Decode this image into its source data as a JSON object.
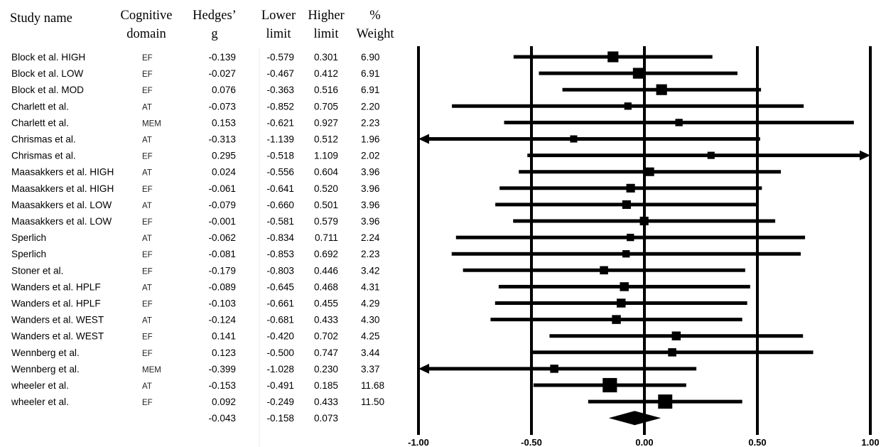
{
  "table": {
    "headers": {
      "study": [
        "Study name"
      ],
      "domain": [
        "Cognitive",
        "domain"
      ],
      "g": [
        "Hedges’",
        "g"
      ],
      "lower": [
        "Lower",
        "limit"
      ],
      "upper": [
        "Higher",
        "limit"
      ],
      "weight": [
        "%",
        "Weight"
      ]
    }
  },
  "chart_data": {
    "type": "forest",
    "xlim": [
      -1.0,
      1.0
    ],
    "x_ticks": [
      "-1.00",
      "-0.50",
      "0.00",
      "0.50",
      "1.00"
    ],
    "rows": [
      {
        "study": "Block et al. HIGH",
        "domain": "EF",
        "g": "-0.139",
        "lower": "-0.579",
        "upper": "0.301",
        "weight": "6.90"
      },
      {
        "study": "Block et al. LOW",
        "domain": "EF",
        "g": "-0.027",
        "lower": "-0.467",
        "upper": "0.412",
        "weight": "6.91"
      },
      {
        "study": "Block et al. MOD",
        "domain": "EF",
        "g": "0.076",
        "lower": "-0.363",
        "upper": "0.516",
        "weight": "6.91"
      },
      {
        "study": "Charlett et al.",
        "domain": "AT",
        "g": "-0.073",
        "lower": "-0.852",
        "upper": "0.705",
        "weight": "2.20"
      },
      {
        "study": "Charlett et al.",
        "domain": "MEM",
        "g": "0.153",
        "lower": "-0.621",
        "upper": "0.927",
        "weight": "2.23"
      },
      {
        "study": "Chrismas et al.",
        "domain": "AT",
        "g": "-0.313",
        "lower": "-1.139",
        "upper": "0.512",
        "weight": "1.96"
      },
      {
        "study": "Chrismas et al.",
        "domain": "EF",
        "g": "0.295",
        "lower": "-0.518",
        "upper": "1.109",
        "weight": "2.02"
      },
      {
        "study": "Maasakkers et al. HIGH",
        "domain": "AT",
        "g": "0.024",
        "lower": "-0.556",
        "upper": "0.604",
        "weight": "3.96"
      },
      {
        "study": "Maasakkers et al. HIGH",
        "domain": "EF",
        "g": "-0.061",
        "lower": "-0.641",
        "upper": "0.520",
        "weight": "3.96"
      },
      {
        "study": "Maasakkers et al. LOW",
        "domain": "AT",
        "g": "-0.079",
        "lower": "-0.660",
        "upper": "0.501",
        "weight": "3.96"
      },
      {
        "study": "Maasakkers et al. LOW",
        "domain": "EF",
        "g": "-0.001",
        "lower": "-0.581",
        "upper": "0.579",
        "weight": "3.96"
      },
      {
        "study": "Sperlich",
        "domain": "AT",
        "g": "-0.062",
        "lower": "-0.834",
        "upper": "0.711",
        "weight": "2.24"
      },
      {
        "study": "Sperlich",
        "domain": "EF",
        "g": "-0.081",
        "lower": "-0.853",
        "upper": "0.692",
        "weight": "2.23"
      },
      {
        "study": "Stoner et al.",
        "domain": "EF",
        "g": "-0.179",
        "lower": "-0.803",
        "upper": "0.446",
        "weight": "3.42"
      },
      {
        "study": "Wanders et al. HPLF",
        "domain": "AT",
        "g": "-0.089",
        "lower": "-0.645",
        "upper": "0.468",
        "weight": "4.31"
      },
      {
        "study": "Wanders et al. HPLF",
        "domain": "EF",
        "g": "-0.103",
        "lower": "-0.661",
        "upper": "0.455",
        "weight": "4.29"
      },
      {
        "study": "Wanders et al. WEST",
        "domain": "AT",
        "g": "-0.124",
        "lower": "-0.681",
        "upper": "0.433",
        "weight": "4.30"
      },
      {
        "study": "Wanders et al. WEST",
        "domain": "EF",
        "g": "0.141",
        "lower": "-0.420",
        "upper": "0.702",
        "weight": "4.25"
      },
      {
        "study": "Wennberg et al.",
        "domain": "EF",
        "g": "0.123",
        "lower": "-0.500",
        "upper": "0.747",
        "weight": "3.44"
      },
      {
        "study": "Wennberg et al.",
        "domain": "MEM",
        "g": "-0.399",
        "lower": "-1.028",
        "upper": "0.230",
        "weight": "3.37"
      },
      {
        "study": "wheeler et al.",
        "domain": "AT",
        "g": "-0.153",
        "lower": "-0.491",
        "upper": "0.185",
        "weight": "11.68"
      },
      {
        "study": "wheeler et al.",
        "domain": "EF",
        "g": "0.092",
        "lower": "-0.249",
        "upper": "0.433",
        "weight": "11.50"
      }
    ],
    "summary": {
      "g": "-0.043",
      "lower": "-0.158",
      "upper": "0.073"
    },
    "grid": true,
    "legend": "none"
  }
}
